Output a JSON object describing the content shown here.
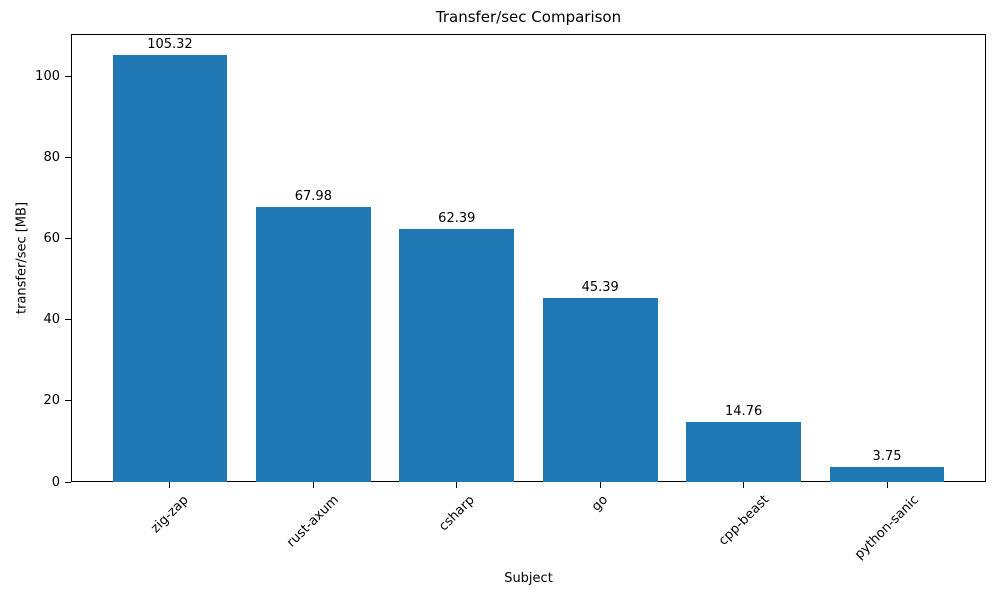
{
  "chart_data": {
    "type": "bar",
    "title": "Transfer/sec Comparison",
    "xlabel": "Subject",
    "ylabel": "transfer/sec [MB]",
    "categories": [
      "zig-zap",
      "rust-axum",
      "csharp",
      "go",
      "cpp-beast",
      "python-sanic"
    ],
    "values": [
      105.32,
      67.98,
      62.39,
      45.39,
      14.76,
      3.75
    ],
    "value_labels": [
      "105.32",
      "67.98",
      "62.39",
      "45.39",
      "14.76",
      "3.75"
    ],
    "yticks": [
      0,
      20,
      40,
      60,
      80,
      100
    ],
    "ylim": [
      0,
      110.59
    ],
    "bar_color": "#1f77b4",
    "bar_width_fraction": 0.8,
    "x_margin_fraction": 0.05,
    "grid": false,
    "legend_position": "none",
    "x_tick_rotation_deg": 45
  }
}
